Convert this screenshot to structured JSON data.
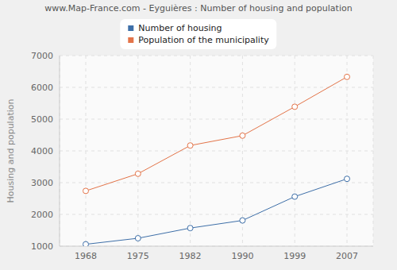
{
  "chart_data": {
    "type": "line",
    "title": "www.Map-France.com - Eyguières : Number of housing and population",
    "y_label": "Housing and population",
    "categories": [
      "1968",
      "1975",
      "1982",
      "1990",
      "1999",
      "2007"
    ],
    "series": [
      {
        "name": "Number of housing",
        "color": "#3e6fa8",
        "values": [
          1060,
          1250,
          1570,
          1810,
          2560,
          3120
        ]
      },
      {
        "name": "Population of the municipality",
        "color": "#e37449",
        "values": [
          2740,
          3280,
          4170,
          4480,
          5390,
          6330
        ]
      }
    ],
    "ylim": [
      1000,
      7000
    ],
    "yticks": [
      1000,
      2000,
      3000,
      4000,
      5000,
      6000,
      7000
    ],
    "grid": true,
    "legend": "top",
    "marker": "circle",
    "line_style": "solid"
  }
}
